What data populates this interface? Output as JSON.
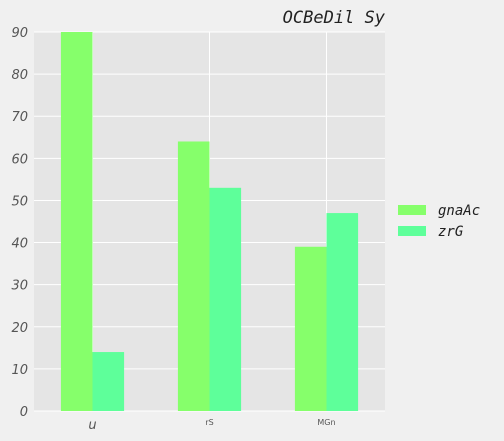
{
  "chart_data": {
    "type": "bar",
    "title": "OCBeDil Sy",
    "categories": [
      "u",
      "rS",
      "MGn"
    ],
    "series": [
      {
        "name": "gnaAc",
        "values": [
          90,
          64,
          39
        ],
        "color": "#86ff6b"
      },
      {
        "name": "zrG",
        "values": [
          14,
          53,
          47
        ],
        "color": "#5eff9a"
      }
    ],
    "ylim": [
      0,
      90
    ],
    "yticks": [
      0,
      10,
      20,
      30,
      40,
      50,
      60,
      70,
      80,
      90
    ],
    "xlabel": "",
    "ylabel": "",
    "grid": true,
    "legend_position": "right",
    "background": "#e5e5e5"
  }
}
